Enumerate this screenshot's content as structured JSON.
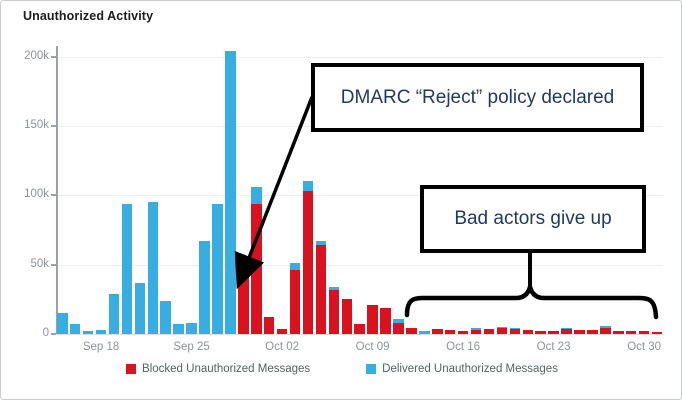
{
  "chart_data": {
    "type": "bar",
    "title": "Unauthorized Activity",
    "xlabel": "",
    "ylabel": "",
    "ylim": [
      0,
      207000
    ],
    "grid": true,
    "legend_position": "bottom",
    "units": "messages per day (values in thousands)",
    "colors": {
      "blocked": "#d8131f",
      "delivered": "#38ade2"
    },
    "y_axis": {
      "ticks": [
        {
          "label": "0",
          "value": 0
        },
        {
          "label": "50k",
          "value": 50
        },
        {
          "label": "100k",
          "value": 100
        },
        {
          "label": "150k",
          "value": 150
        },
        {
          "label": "200k",
          "value": 200
        }
      ]
    },
    "x_axis": {
      "ticks": [
        {
          "label": "Sep 18",
          "day_index": 3
        },
        {
          "label": "Sep 25",
          "day_index": 10
        },
        {
          "label": "Oct 02",
          "day_index": 17
        },
        {
          "label": "Oct 09",
          "day_index": 24
        },
        {
          "label": "Oct 16",
          "day_index": 31
        },
        {
          "label": "Oct 23",
          "day_index": 38
        },
        {
          "label": "Oct 30",
          "day_index": 45
        }
      ]
    },
    "legend": [
      {
        "label": "Blocked Unauthorized Messages",
        "series": "blocked",
        "color": "#d8131f"
      },
      {
        "label": "Delivered Unauthorized Messages",
        "series": "delivered",
        "color": "#38ade2"
      }
    ],
    "days": [
      {
        "date": "Sep 15",
        "blocked": 0,
        "delivered": 15.5
      },
      {
        "date": "Sep 16",
        "blocked": 0,
        "delivered": 7
      },
      {
        "date": "Sep 17",
        "blocked": 0,
        "delivered": 2
      },
      {
        "date": "Sep 18",
        "blocked": 0,
        "delivered": 3
      },
      {
        "date": "Sep 19",
        "blocked": 0,
        "delivered": 29
      },
      {
        "date": "Sep 20",
        "blocked": 0,
        "delivered": 94
      },
      {
        "date": "Sep 21",
        "blocked": 0,
        "delivered": 37
      },
      {
        "date": "Sep 22",
        "blocked": 0,
        "delivered": 95
      },
      {
        "date": "Sep 23",
        "blocked": 0,
        "delivered": 24
      },
      {
        "date": "Sep 24",
        "blocked": 0,
        "delivered": 7
      },
      {
        "date": "Sep 25",
        "blocked": 0,
        "delivered": 8
      },
      {
        "date": "Sep 26",
        "blocked": 0,
        "delivered": 67
      },
      {
        "date": "Sep 27",
        "blocked": 0,
        "delivered": 94
      },
      {
        "date": "Sep 28",
        "blocked": 0,
        "delivered": 204
      },
      {
        "date": "Sep 29",
        "blocked": 41,
        "delivered": 0
      },
      {
        "date": "Sep 30",
        "blocked": 94,
        "delivered": 12
      },
      {
        "date": "Oct 01",
        "blocked": 12,
        "delivered": 0
      },
      {
        "date": "Oct 02",
        "blocked": 3.5,
        "delivered": 0
      },
      {
        "date": "Oct 03",
        "blocked": 46,
        "delivered": 5
      },
      {
        "date": "Oct 04",
        "blocked": 103,
        "delivered": 7
      },
      {
        "date": "Oct 05",
        "blocked": 64,
        "delivered": 3
      },
      {
        "date": "Oct 06",
        "blocked": 32,
        "delivered": 2
      },
      {
        "date": "Oct 07",
        "blocked": 25,
        "delivered": 0
      },
      {
        "date": "Oct 08",
        "blocked": 7,
        "delivered": 0
      },
      {
        "date": "Oct 09",
        "blocked": 21,
        "delivered": 0
      },
      {
        "date": "Oct 10",
        "blocked": 19,
        "delivered": 0
      },
      {
        "date": "Oct 11",
        "blocked": 8,
        "delivered": 3
      },
      {
        "date": "Oct 12",
        "blocked": 4.5,
        "delivered": 0
      },
      {
        "date": "Oct 13",
        "blocked": 0,
        "delivered": 2.5
      },
      {
        "date": "Oct 14",
        "blocked": 3.5,
        "delivered": 0
      },
      {
        "date": "Oct 15",
        "blocked": 3,
        "delivered": 0
      },
      {
        "date": "Oct 16",
        "blocked": 2.5,
        "delivered": 0
      },
      {
        "date": "Oct 17",
        "blocked": 3,
        "delivered": 1
      },
      {
        "date": "Oct 18",
        "blocked": 3.5,
        "delivered": 0
      },
      {
        "date": "Oct 19",
        "blocked": 4,
        "delivered": 1
      },
      {
        "date": "Oct 20",
        "blocked": 3.5,
        "delivered": 1
      },
      {
        "date": "Oct 21",
        "blocked": 3,
        "delivered": 0
      },
      {
        "date": "Oct 22",
        "blocked": 2.5,
        "delivered": 0
      },
      {
        "date": "Oct 23",
        "blocked": 2,
        "delivered": 0
      },
      {
        "date": "Oct 24",
        "blocked": 3.5,
        "delivered": 1
      },
      {
        "date": "Oct 25",
        "blocked": 3,
        "delivered": 0
      },
      {
        "date": "Oct 26",
        "blocked": 3,
        "delivered": 0
      },
      {
        "date": "Oct 27",
        "blocked": 4.5,
        "delivered": 1
      },
      {
        "date": "Oct 28",
        "blocked": 2.5,
        "delivered": 0
      },
      {
        "date": "Oct 29",
        "blocked": 2,
        "delivered": 0
      },
      {
        "date": "Oct 30",
        "blocked": 2,
        "delivered": 0
      },
      {
        "date": "Oct 31",
        "blocked": 1.5,
        "delivered": 0
      }
    ]
  },
  "annotations": {
    "dmarc": {
      "text": "DMARC “Reject” policy declared"
    },
    "bad_actors": {
      "text": "Bad actors give up"
    }
  }
}
